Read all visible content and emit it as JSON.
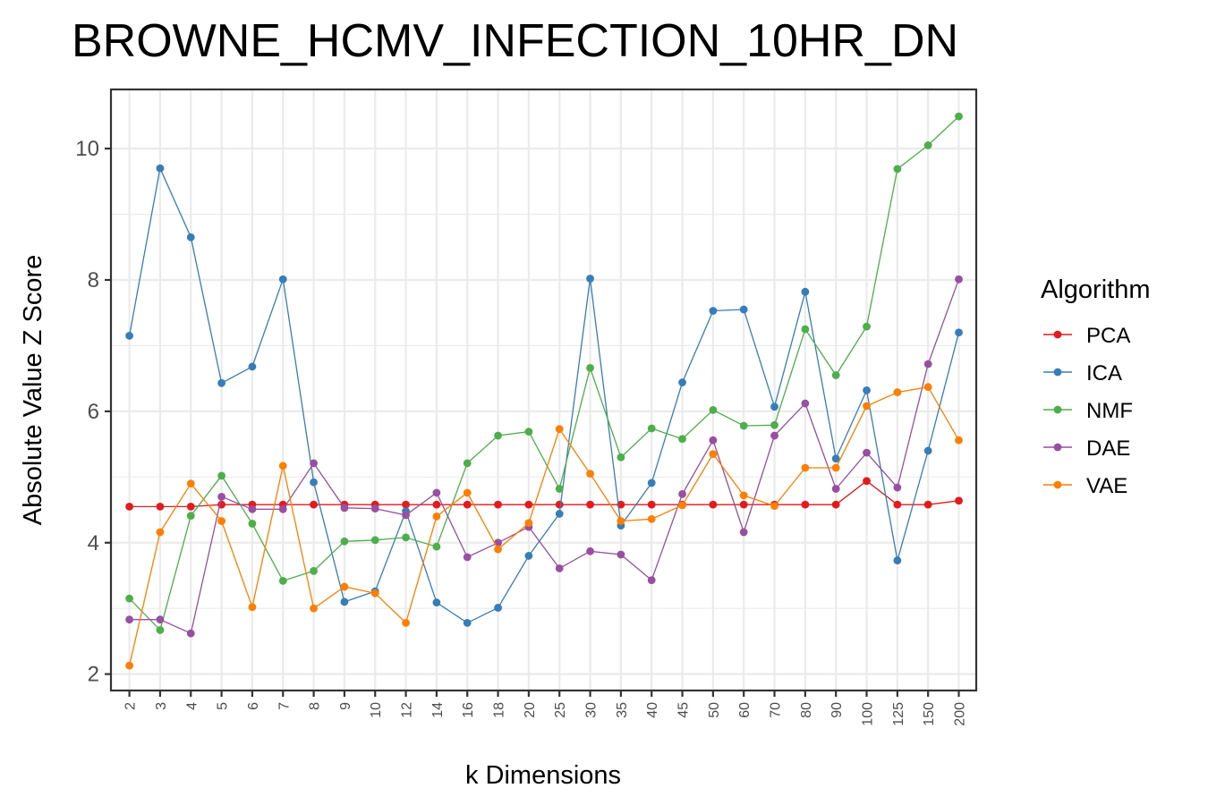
{
  "chart_data": {
    "type": "line",
    "title": "BROWNE_HCMV_INFECTION_10HR_DN",
    "xlabel": "k Dimensions",
    "ylabel": "Absolute Value Z Score",
    "categories": [
      "2",
      "3",
      "4",
      "5",
      "6",
      "7",
      "8",
      "9",
      "10",
      "12",
      "14",
      "16",
      "18",
      "20",
      "25",
      "30",
      "35",
      "40",
      "45",
      "50",
      "60",
      "70",
      "80",
      "90",
      "100",
      "125",
      "150",
      "200"
    ],
    "ylim": [
      1.75,
      10.9
    ],
    "yticks": [
      2,
      4,
      6,
      8,
      10
    ],
    "grid": true,
    "legend": {
      "title": "Algorithm",
      "position": "right"
    },
    "series": [
      {
        "name": "PCA",
        "color": "#e41a1c",
        "values": [
          4.55,
          4.55,
          4.55,
          4.58,
          4.58,
          4.58,
          4.58,
          4.58,
          4.58,
          4.58,
          4.58,
          4.58,
          4.58,
          4.58,
          4.58,
          4.58,
          4.58,
          4.58,
          4.58,
          4.58,
          4.58,
          4.58,
          4.58,
          4.58,
          4.94,
          4.58,
          4.58,
          4.64
        ]
      },
      {
        "name": "ICA",
        "color": "#377eb8",
        "values": [
          7.15,
          9.7,
          8.65,
          6.43,
          6.68,
          8.01,
          4.92,
          3.1,
          3.26,
          4.48,
          3.09,
          2.78,
          3.01,
          3.8,
          4.44,
          8.02,
          4.26,
          4.91,
          6.44,
          7.53,
          7.55,
          6.07,
          7.82,
          5.28,
          6.32,
          3.73,
          5.4,
          7.2
        ]
      },
      {
        "name": "NMF",
        "color": "#4daf4a",
        "values": [
          3.15,
          2.67,
          4.41,
          5.02,
          4.29,
          3.42,
          3.57,
          4.02,
          4.04,
          4.08,
          3.94,
          5.21,
          5.63,
          5.69,
          4.82,
          6.66,
          5.3,
          5.74,
          5.58,
          6.02,
          5.78,
          5.79,
          7.25,
          6.55,
          7.29,
          9.69,
          10.05,
          10.49
        ]
      },
      {
        "name": "DAE",
        "color": "#984ea3",
        "values": [
          2.83,
          2.83,
          2.62,
          4.7,
          4.51,
          4.51,
          5.21,
          4.53,
          4.52,
          4.42,
          4.76,
          3.78,
          4.0,
          4.24,
          3.61,
          3.87,
          3.82,
          3.43,
          4.74,
          5.56,
          4.16,
          5.63,
          6.12,
          4.82,
          5.37,
          4.84,
          6.72,
          8.01
        ]
      },
      {
        "name": "VAE",
        "color": "#ff7f00",
        "values": [
          2.13,
          4.16,
          4.9,
          4.33,
          3.02,
          5.17,
          3.0,
          3.33,
          3.23,
          2.78,
          4.4,
          4.76,
          3.9,
          4.3,
          5.73,
          5.05,
          4.33,
          4.36,
          4.57,
          5.35,
          4.72,
          4.56,
          5.14,
          5.14,
          6.08,
          6.29,
          6.37,
          5.56
        ]
      }
    ]
  }
}
